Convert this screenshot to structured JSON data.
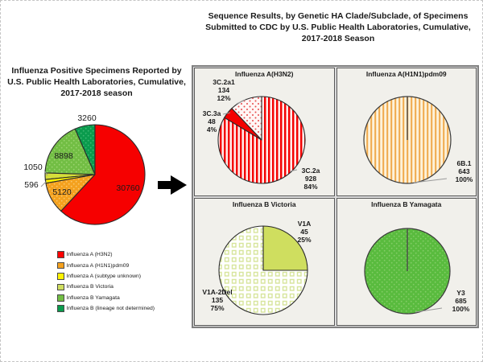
{
  "page": {
    "left_title": "Influenza Positive Specimens Reported by U.S. Public Health Laboratories, Cumulative, 2017-2018 season",
    "right_title": "Sequence Results, by Genetic HA Clade/Subclade, of Specimens Submitted to CDC by U.S. Public Health Laboratories, Cumulative, 2017-2018 Season"
  },
  "legend": {
    "swatches": [
      "#ff0000",
      "#f4a11e",
      "#fff200",
      "#cfde5f",
      "#72be44",
      "#0a9b4d"
    ]
  },
  "chart_data": [
    {
      "name": "summary-pie",
      "type": "pie",
      "title": "Influenza Positive Specimens Reported by U.S. Public Health Laboratories, Cumulative, 2017-2018 season",
      "categories": [
        "Influenza A (H3N2)",
        "Influenza A (H1N1)pdm09",
        "Influenza A (subtype unknown)",
        "Influenza B Victoria",
        "Influenza B Yamagata",
        "Influenza B (lineage not determined)"
      ],
      "values": [
        30760,
        5120,
        596,
        1050,
        8898,
        3260
      ],
      "fills": [
        "#f60000",
        "pattern:dot-orange",
        "#fef200",
        "#d6de3a",
        "pattern:dot-green1",
        "pattern:dot-dkgreen"
      ],
      "legend_position": "bottom-left",
      "start_angle_deg": 0,
      "direction": "clockwise"
    },
    {
      "name": "h3n2-pie",
      "type": "pie",
      "title": "Influenza A(H3N2)",
      "categories": [
        "3C.2a",
        "3C.3a",
        "3C.2a1"
      ],
      "values": [
        928,
        48,
        134
      ],
      "pct_labels": [
        "84%",
        "4%",
        "12%"
      ],
      "fills": [
        "pattern:stripe-red",
        "#f40000",
        "pattern:dot-red"
      ]
    },
    {
      "name": "h1n1-pie",
      "type": "pie",
      "title": "Influenza A(H1N1)pdm09",
      "categories": [
        "6B.1"
      ],
      "values": [
        643
      ],
      "pct_labels": [
        "100%"
      ],
      "fills": [
        "pattern:stripe-tan"
      ]
    },
    {
      "name": "victoria-pie",
      "type": "pie",
      "title": "Influenza B Victoria",
      "categories": [
        "V1A",
        "V1A-2Del"
      ],
      "values": [
        45,
        135
      ],
      "pct_labels": [
        "25%",
        "75%"
      ],
      "fills": [
        "#cfde5f",
        "pattern:check-green"
      ]
    },
    {
      "name": "yamagata-pie",
      "type": "pie",
      "title": "Influenza B Yamagata",
      "categories": [
        "Y3"
      ],
      "values": [
        685
      ],
      "pct_labels": [
        "100%"
      ],
      "fills": [
        "pattern:dot-green2"
      ]
    }
  ]
}
